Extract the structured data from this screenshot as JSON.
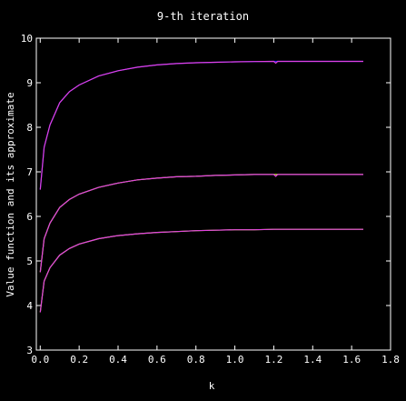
{
  "chart_data": {
    "type": "line",
    "title": "9-th iteration",
    "xlabel": "k",
    "ylabel": "Value function and its approximate",
    "xlim": [
      -0.02,
      1.8
    ],
    "ylim": [
      3,
      10
    ],
    "xticks": [
      0.0,
      0.2,
      0.4,
      0.6,
      0.8,
      1.0,
      1.2,
      1.4,
      1.6,
      1.8
    ],
    "xtick_labels": [
      "0.0",
      "0.2",
      "0.4",
      "0.6",
      "0.8",
      "1.0",
      "1.2",
      "1.4",
      "1.6",
      "1.8"
    ],
    "yticks": [
      3,
      4,
      5,
      6,
      7,
      8,
      9,
      10
    ],
    "ytick_labels": [
      "3",
      "4",
      "5",
      "6",
      "7",
      "8",
      "9",
      "10"
    ],
    "grid": false,
    "background": "#000000",
    "axis_color": "#ffffff",
    "series": [
      {
        "color": "#2222ff",
        "x": [
          0.0,
          0.02,
          0.05,
          0.1,
          0.15,
          0.2,
          0.3,
          0.4,
          0.5,
          0.6,
          0.7,
          0.8,
          0.9,
          1.0,
          1.1,
          1.2,
          1.3,
          1.4,
          1.5,
          1.6,
          1.66
        ],
        "y": [
          6.6,
          7.55,
          8.05,
          8.55,
          8.8,
          8.95,
          9.15,
          9.27,
          9.35,
          9.4,
          9.43,
          9.45,
          9.46,
          9.47,
          9.475,
          9.48,
          9.48,
          9.48,
          9.48,
          9.48,
          9.48
        ]
      },
      {
        "color": "#e040e0",
        "x": [
          0.0,
          0.02,
          0.05,
          0.1,
          0.15,
          0.2,
          0.3,
          0.4,
          0.5,
          0.6,
          0.7,
          0.8,
          0.9,
          1.0,
          1.1,
          1.2,
          1.21,
          1.22,
          1.3,
          1.4,
          1.5,
          1.6,
          1.66
        ],
        "y": [
          6.6,
          7.55,
          8.05,
          8.55,
          8.8,
          8.95,
          9.15,
          9.27,
          9.35,
          9.4,
          9.43,
          9.45,
          9.46,
          9.47,
          9.475,
          9.48,
          9.44,
          9.48,
          9.48,
          9.48,
          9.48,
          9.48,
          9.48
        ]
      },
      {
        "color": "#ccff33",
        "x": [
          0.0,
          0.02,
          0.05,
          0.1,
          0.15,
          0.2,
          0.3,
          0.4,
          0.5,
          0.6,
          0.7,
          0.8,
          0.9,
          1.0,
          1.1,
          1.2,
          1.3,
          1.4,
          1.5,
          1.6,
          1.66
        ],
        "y": [
          4.75,
          5.5,
          5.85,
          6.2,
          6.38,
          6.5,
          6.65,
          6.75,
          6.82,
          6.86,
          6.89,
          6.9,
          6.92,
          6.93,
          6.94,
          6.94,
          6.94,
          6.94,
          6.94,
          6.94,
          6.94
        ]
      },
      {
        "color": "#e040e0",
        "x": [
          0.0,
          0.02,
          0.05,
          0.1,
          0.15,
          0.2,
          0.3,
          0.4,
          0.5,
          0.6,
          0.7,
          0.8,
          0.9,
          1.0,
          1.1,
          1.2,
          1.21,
          1.22,
          1.3,
          1.4,
          1.5,
          1.6,
          1.66
        ],
        "y": [
          4.75,
          5.5,
          5.85,
          6.2,
          6.38,
          6.5,
          6.65,
          6.75,
          6.82,
          6.86,
          6.89,
          6.9,
          6.92,
          6.93,
          6.94,
          6.94,
          6.9,
          6.94,
          6.94,
          6.94,
          6.94,
          6.94,
          6.94
        ]
      },
      {
        "color": "#ccff33",
        "x": [
          0.0,
          0.02,
          0.05,
          0.1,
          0.15,
          0.2,
          0.3,
          0.4,
          0.5,
          0.6,
          0.7,
          0.8,
          0.9,
          1.0,
          1.1,
          1.2,
          1.3,
          1.4,
          1.5,
          1.6,
          1.66
        ],
        "y": [
          3.85,
          4.55,
          4.85,
          5.13,
          5.28,
          5.38,
          5.5,
          5.57,
          5.61,
          5.64,
          5.66,
          5.68,
          5.69,
          5.7,
          5.7,
          5.71,
          5.71,
          5.71,
          5.71,
          5.71,
          5.71
        ]
      },
      {
        "color": "#e040e0",
        "x": [
          0.0,
          0.02,
          0.05,
          0.1,
          0.15,
          0.2,
          0.3,
          0.4,
          0.5,
          0.6,
          0.7,
          0.8,
          0.9,
          1.0,
          1.1,
          1.2,
          1.3,
          1.4,
          1.5,
          1.6,
          1.66
        ],
        "y": [
          3.85,
          4.55,
          4.85,
          5.13,
          5.28,
          5.38,
          5.5,
          5.57,
          5.61,
          5.64,
          5.66,
          5.68,
          5.69,
          5.7,
          5.7,
          5.71,
          5.71,
          5.71,
          5.71,
          5.71,
          5.71
        ]
      }
    ]
  }
}
